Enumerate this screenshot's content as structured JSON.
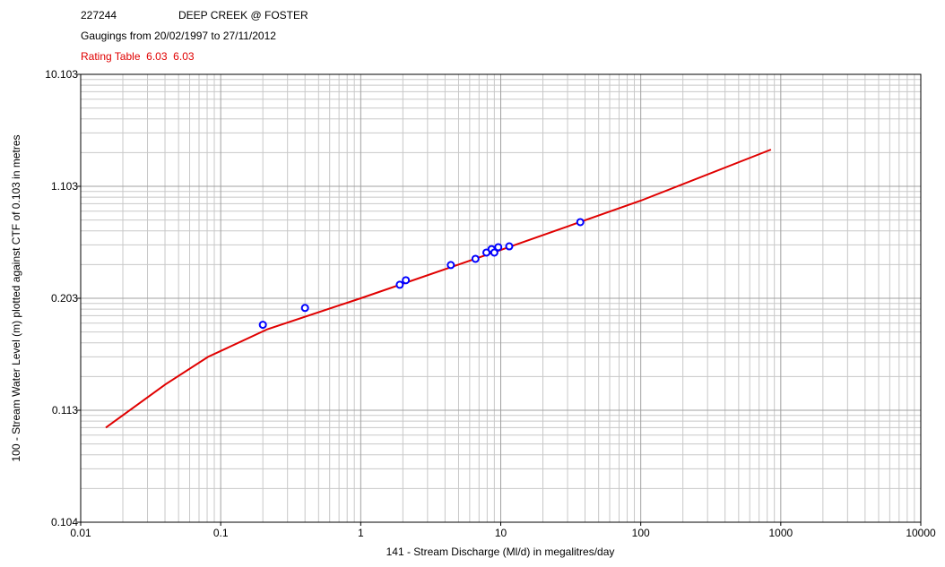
{
  "chart_data": {
    "type": "rating",
    "site_id": "227244",
    "site_name": "DEEP CREEK @ FOSTER",
    "subtitle": "Gaugings from 20/02/1997 to 27/11/2012",
    "rating_label": "Rating Table  6.03  6.03",
    "rating_color": "#e00000",
    "x_label": "141 - Stream Discharge (Ml/d) in megalitres/day",
    "y_label": "100 - Stream Water Level (m) plotted against CTF of 0.103 in metres",
    "xscale": "log",
    "yscale": "log",
    "ctf": 0.103,
    "xlim": [
      0.01,
      10000
    ],
    "ylim": [
      0.104,
      10.103
    ],
    "xticks": [
      0.01,
      0.1,
      1,
      10,
      100,
      1000,
      10000
    ],
    "yticks": [
      0.104,
      0.113,
      0.203,
      1.103,
      10.103
    ],
    "grid": true,
    "curve": {
      "color": "#e00000",
      "x": [
        0.0151,
        0.0402,
        0.0813,
        0.216,
        1,
        10,
        100,
        851
      ],
      "y": [
        0.11,
        0.12,
        0.133,
        0.156,
        0.203,
        0.373,
        0.848,
        2.233
      ]
    },
    "gaugings": {
      "color": "#0000ff",
      "x": [
        0.2,
        0.4,
        1.9,
        2.1,
        4.4,
        6.6,
        7.9,
        8.6,
        9.0,
        9.6,
        11.5,
        37
      ],
      "y": [
        0.161,
        0.185,
        0.235,
        0.248,
        0.301,
        0.328,
        0.359,
        0.378,
        0.359,
        0.389,
        0.394,
        0.582
      ]
    }
  }
}
